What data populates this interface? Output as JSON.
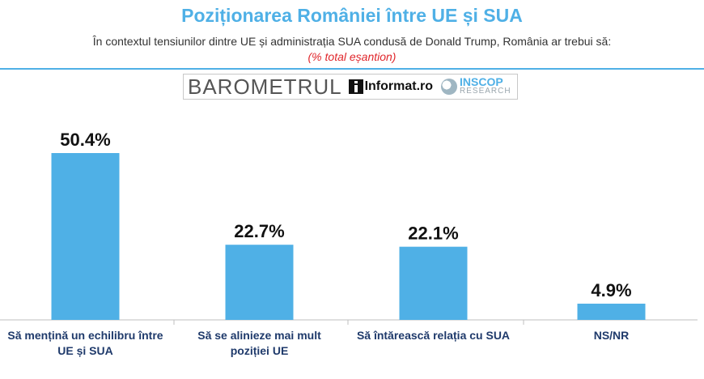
{
  "header": {
    "title": "Poziționarea României între UE și SUA",
    "subtitle": "În contextul tensiunilor dintre UE și administrația SUA condusă de Donald Trump, România ar trebui să:",
    "note": "(% total eșantion)"
  },
  "logos": {
    "barometru": "BAROMETRUL",
    "informat": "Informat.ro",
    "inscop": "INSCOP",
    "inscop_sub": "RESEARCH"
  },
  "colors": {
    "bar": "#4fb0e6",
    "title": "#4fb0e6",
    "note": "#e0262b",
    "category_label": "#1f3a6b"
  },
  "chart_data": {
    "type": "bar",
    "title": "Poziționarea României între UE și SUA",
    "categories": [
      "Să mențină un echilibru între UE și SUA",
      "Să se alinieze mai mult poziției UE",
      "Să întărească relația cu SUA",
      "NS/NR"
    ],
    "values": [
      50.4,
      22.7,
      22.1,
      4.9
    ],
    "value_labels": [
      "50.4%",
      "22.7%",
      "22.1%",
      "4.9%"
    ],
    "ylim": [
      0,
      60
    ],
    "grid": false,
    "legend": "none",
    "xlabel": "",
    "ylabel": ""
  }
}
